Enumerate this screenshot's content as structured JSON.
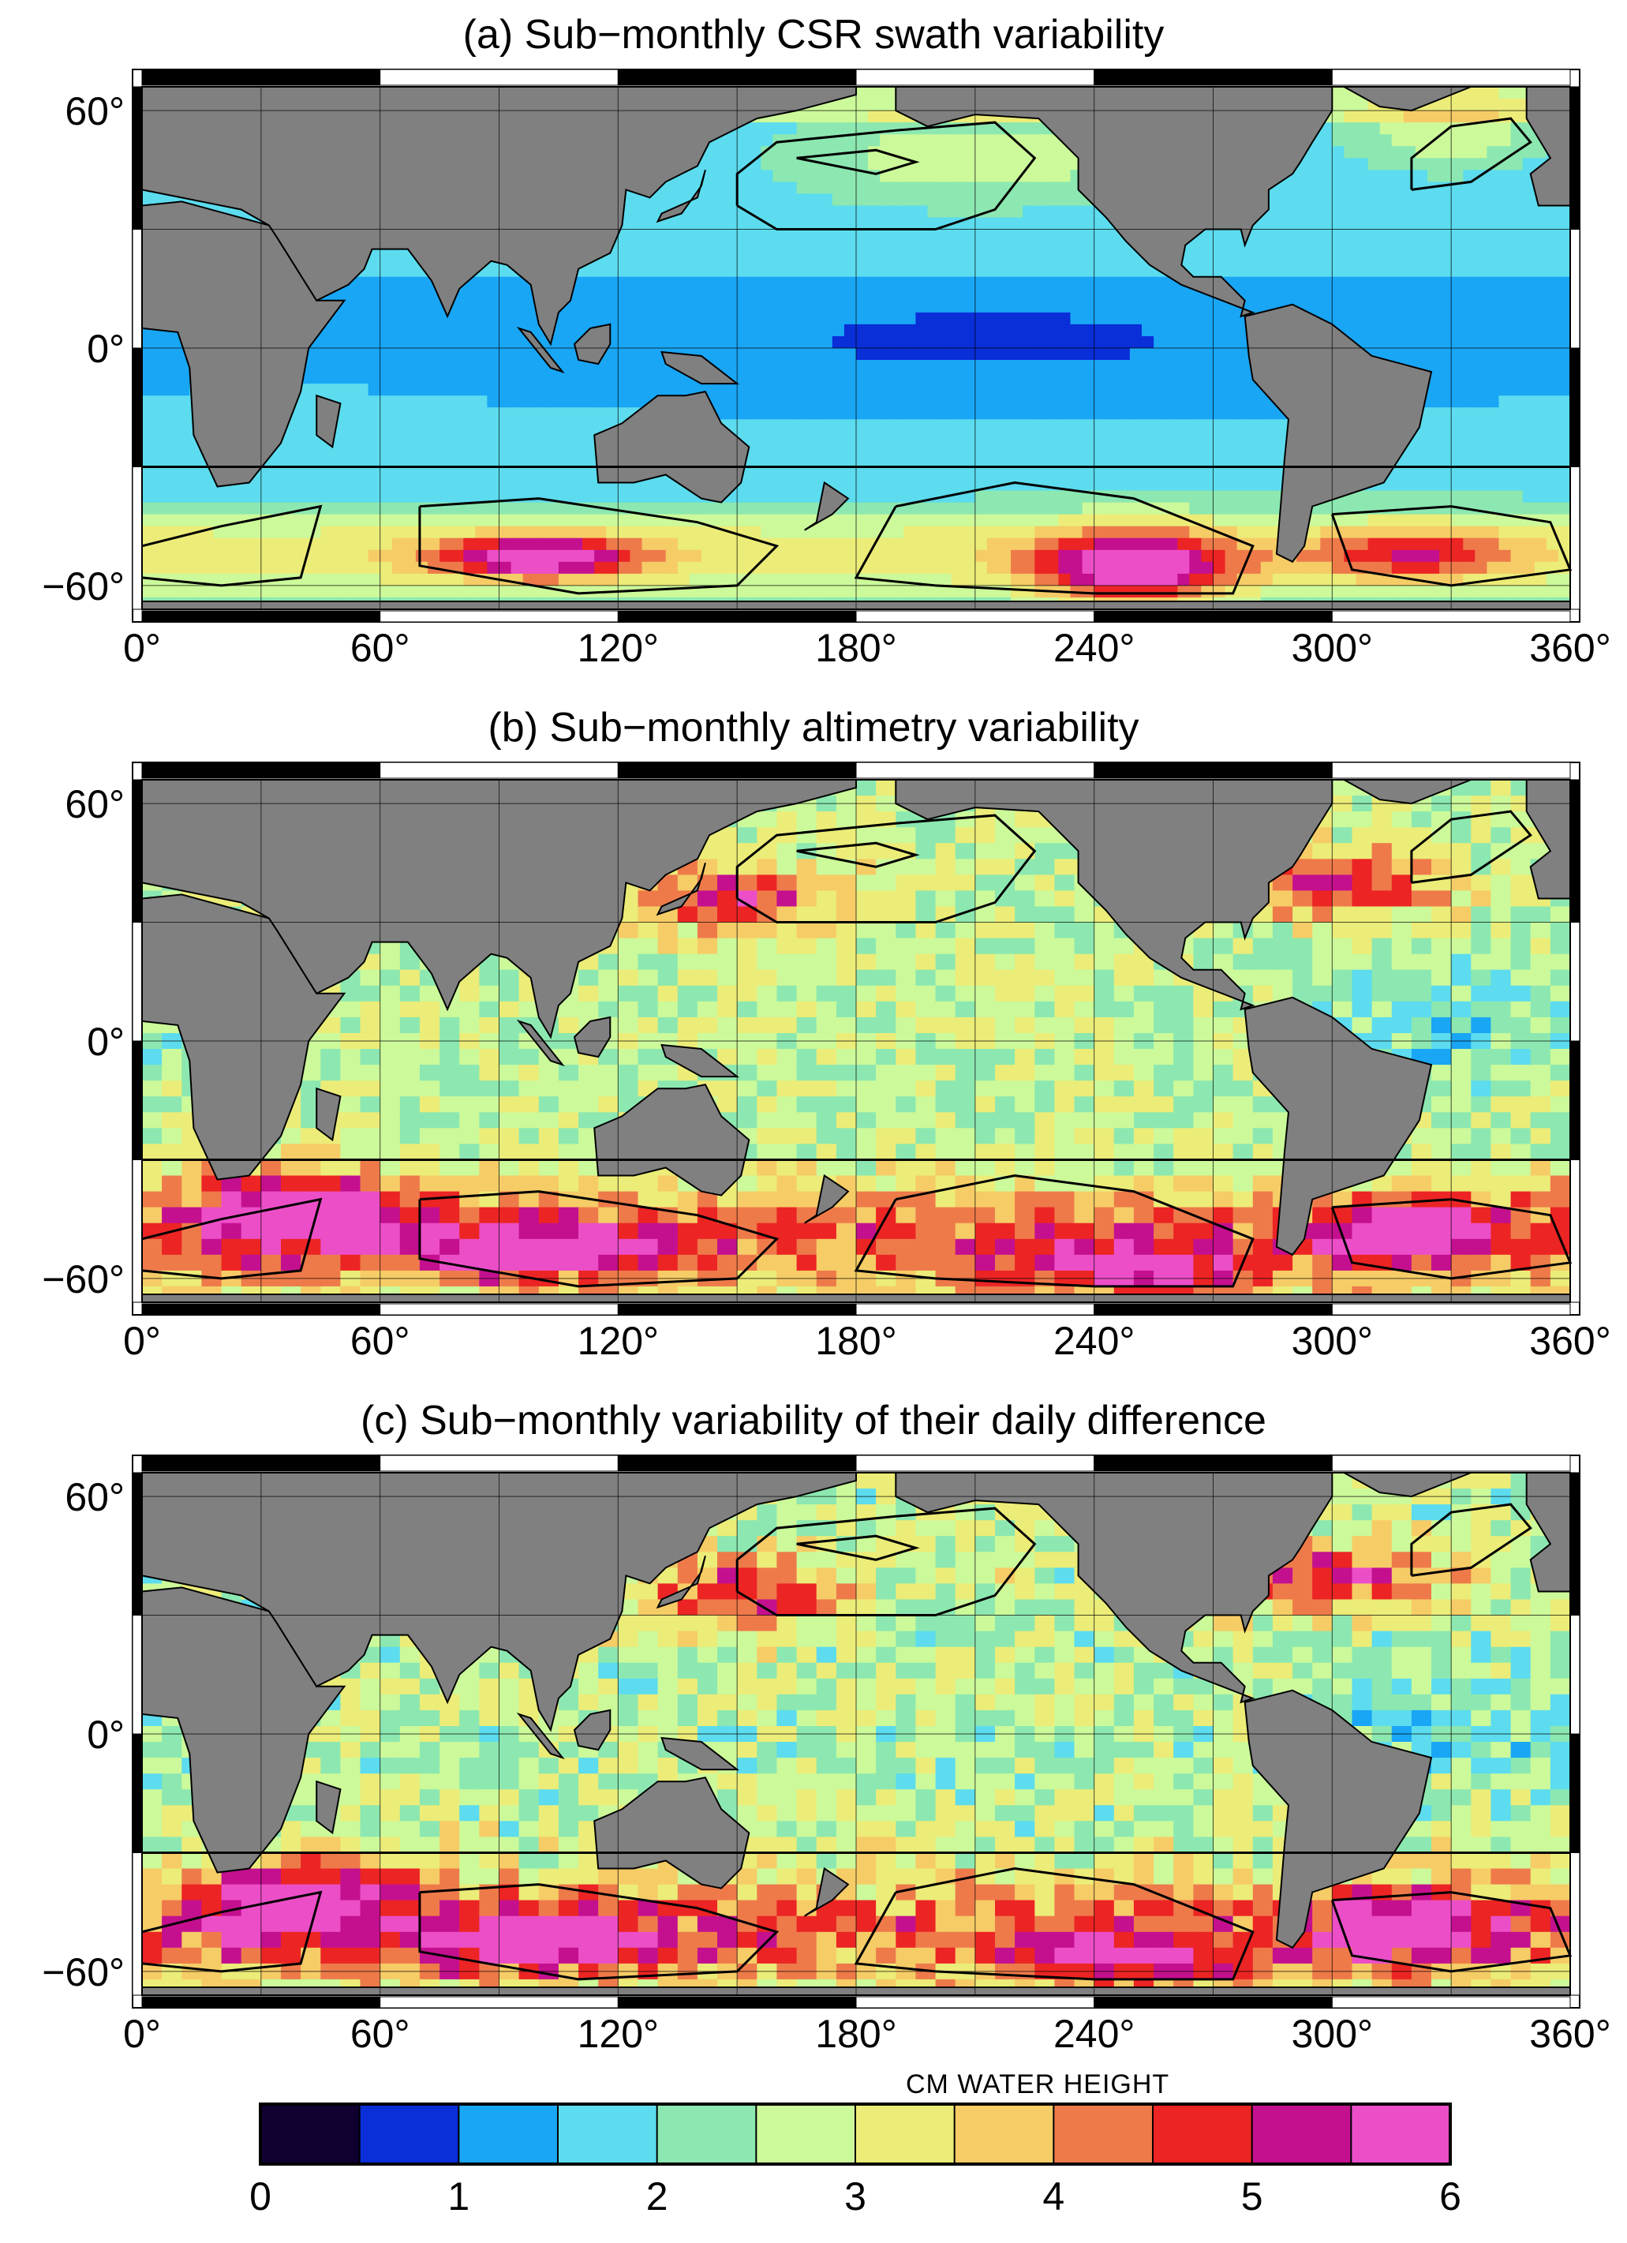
{
  "panels": [
    {
      "id": "a",
      "title": "(a) Sub−monthly CSR swath variability",
      "style": "smooth"
    },
    {
      "id": "b",
      "title": "(b) Sub−monthly altimetry variability",
      "style": "blocky"
    },
    {
      "id": "c",
      "title": "(c) Sub−monthly variability of their daily difference",
      "style": "blocky"
    }
  ],
  "axes": {
    "x_ticks": [
      "0°",
      "60°",
      "120°",
      "180°",
      "240°",
      "300°",
      "360°"
    ],
    "y_ticks": [
      "60°",
      "0°",
      "−60°"
    ],
    "lon_range": [
      0,
      360
    ],
    "lat_range": [
      -66,
      66
    ]
  },
  "colorbar": {
    "title": "CM WATER HEIGHT",
    "tick_labels": [
      "0",
      "1",
      "2",
      "3",
      "4",
      "5",
      "6"
    ],
    "range": [
      0,
      6
    ],
    "colors": [
      "#100030",
      "#0a2ed8",
      "#19a6f5",
      "#5cdcee",
      "#8ce8b0",
      "#ccf99a",
      "#ecec78",
      "#f6cc66",
      "#ee7a4a",
      "#ec2424",
      "#c4108e",
      "#ec4ec8"
    ]
  },
  "land_color": "#808080"
}
